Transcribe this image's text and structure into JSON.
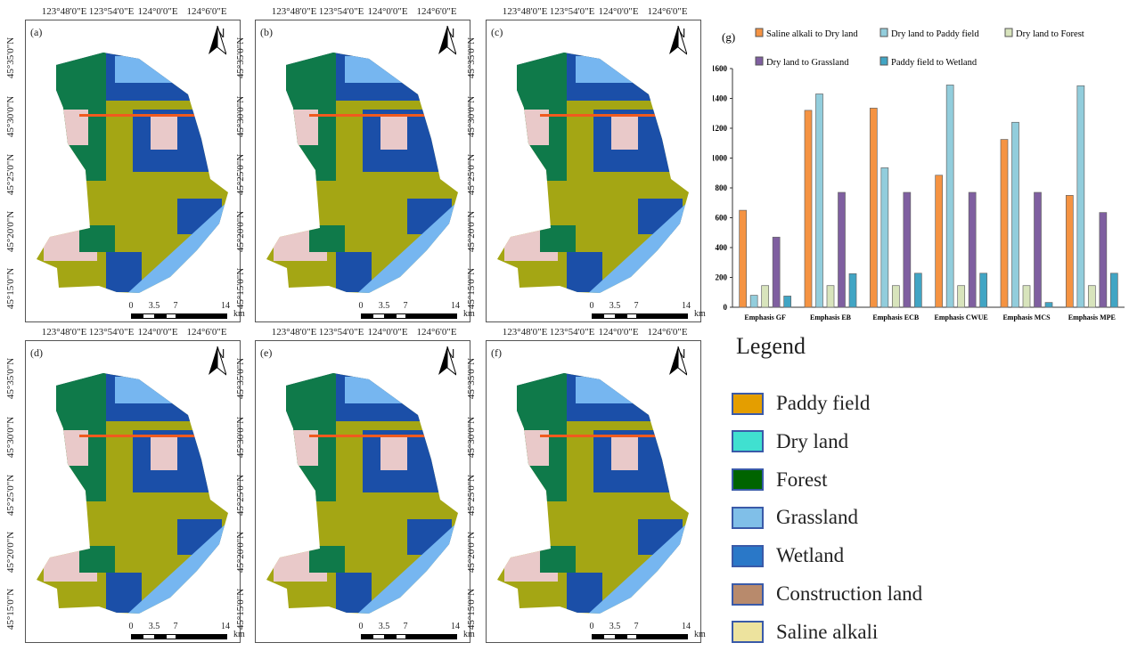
{
  "maps": {
    "panels": [
      {
        "label": "(a)"
      },
      {
        "label": "(b)"
      },
      {
        "label": "(c)"
      },
      {
        "label": "(d)"
      },
      {
        "label": "(e)"
      },
      {
        "label": "(f)"
      }
    ],
    "lon_labels": [
      "123°48'0\"E",
      "123°54'0\"E",
      "124°0'0\"E",
      "124°6'0\"E"
    ],
    "lat_labels": [
      "45°35'0\"N",
      "45°30'0\"N",
      "45°25'0\"N",
      "45°20'0\"N",
      "45°15'0\"N"
    ],
    "north": "N",
    "scale_labels": [
      "0",
      "3.5",
      "7",
      "14"
    ],
    "scale_unit": "km"
  },
  "legend": {
    "title": "Legend",
    "items": [
      {
        "label": "Paddy field",
        "color": "#e49e00"
      },
      {
        "label": "Dry land",
        "color": "#40e0d0"
      },
      {
        "label": "Forest",
        "color": "#006400"
      },
      {
        "label": "Grassland",
        "color": "#80bfe8"
      },
      {
        "label": "Wetland",
        "color": "#2a78c8"
      },
      {
        "label": "Construction land",
        "color": "#b88a6c"
      },
      {
        "label": "Saline alkali",
        "color": "#ede39e"
      }
    ]
  },
  "chart_data": {
    "type": "bar",
    "panel_label": "(g)",
    "categories": [
      "Emphasis GF",
      "Emphasis EB",
      "Emphasis ECB",
      "Emphasis CWUE",
      "Emphasis MCS",
      "Emphasis MPE"
    ],
    "series": [
      {
        "name": "Saline alkali  to Dry land",
        "color": "#f59342",
        "values": [
          650,
          1320,
          1335,
          885,
          1125,
          750
        ]
      },
      {
        "name": "Dry land to Paddy field",
        "color": "#92cddc",
        "values": [
          80,
          1430,
          935,
          1490,
          1240,
          1485
        ]
      },
      {
        "name": "Dry land to Forest",
        "color": "#d8e4bc",
        "values": [
          145,
          145,
          145,
          145,
          145,
          145
        ]
      },
      {
        "name": "Dry land to Grassland",
        "color": "#7f5fa0",
        "values": [
          470,
          770,
          770,
          770,
          770,
          635
        ]
      },
      {
        "name": "Paddy field to Wetland",
        "color": "#41a5c4",
        "values": [
          75,
          225,
          228,
          228,
          32,
          228
        ]
      }
    ],
    "ylim": [
      0,
      1600
    ],
    "yticks": [
      "0",
      "200",
      "400",
      "600",
      "800",
      "1000",
      "1200",
      "1400",
      "1600"
    ],
    "legend": "top",
    "grid": false
  }
}
